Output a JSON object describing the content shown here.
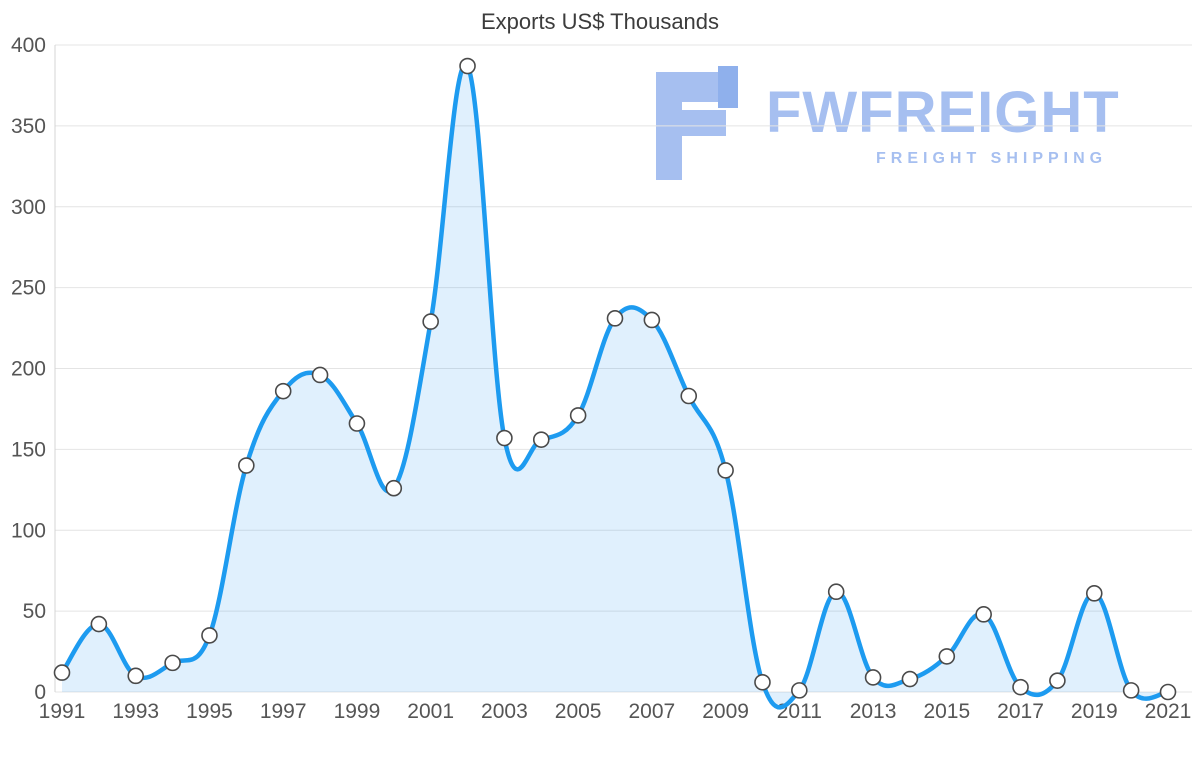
{
  "logo": {
    "text": "FWFREIGHT",
    "tagline": "FREIGHT SHIPPING",
    "color": "#a6bff0"
  },
  "chart_data": {
    "type": "area",
    "title": "Exports US$ Thousands",
    "xlabel": "",
    "ylabel": "",
    "x": [
      1991,
      1992,
      1993,
      1994,
      1995,
      1996,
      1997,
      1998,
      1999,
      2000,
      2001,
      2002,
      2003,
      2004,
      2005,
      2006,
      2007,
      2008,
      2009,
      2010,
      2011,
      2012,
      2013,
      2014,
      2015,
      2016,
      2017,
      2018,
      2019,
      2020,
      2021
    ],
    "series": [
      {
        "name": "Exports US$ Thousands",
        "values": [
          12,
          42,
          10,
          18,
          35,
          140,
          186,
          196,
          166,
          126,
          229,
          387,
          157,
          156,
          171,
          231,
          230,
          183,
          137,
          6,
          1,
          62,
          9,
          8,
          22,
          48,
          3,
          7,
          61,
          1,
          0
        ]
      }
    ],
    "ylim": [
      0,
      400
    ],
    "yticks": [
      0,
      50,
      100,
      150,
      200,
      250,
      300,
      350,
      400
    ],
    "xtick_labels": [
      "1991",
      "1993",
      "1995",
      "1997",
      "1999",
      "2001",
      "2003",
      "2005",
      "2007",
      "2009",
      "2011",
      "2013",
      "2015",
      "2017",
      "2019",
      "2021"
    ],
    "grid": "horizontal",
    "legend": "none",
    "colors": {
      "line": "#1d9bf0",
      "area_fill": "rgba(33,150,243,0.14)",
      "marker_fill": "#ffffff",
      "marker_stroke": "#4a4a4a",
      "grid": "#e4e4e4",
      "axis_line": "#d4d4d4",
      "tick_label": "#555555"
    }
  }
}
